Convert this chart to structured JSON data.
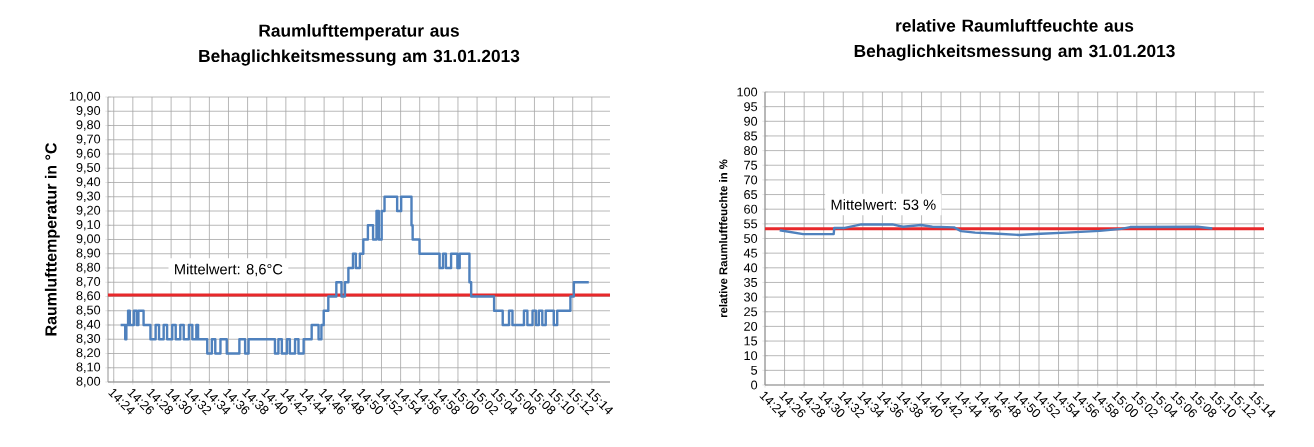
{
  "chart_data": [
    {
      "type": "step",
      "title": "Raumlufttemperatur aus Behaglichkeitsmessung am 31.01.2013",
      "ylabel": "Raumlufttemperatur in °C",
      "grid": true,
      "x": [
        14.412,
        14.42,
        14.422,
        14.425,
        14.428,
        14.435,
        14.44,
        14.443,
        14.452,
        14.464,
        14.473,
        14.479,
        14.487,
        14.493,
        14.502,
        14.508,
        14.516,
        14.522,
        14.531,
        14.537,
        14.544,
        14.547,
        14.563,
        14.571,
        14.577,
        14.586,
        14.597,
        14.619,
        14.629,
        14.635,
        14.681,
        14.687,
        14.693,
        14.702,
        14.707,
        14.716,
        14.722,
        14.731,
        14.745,
        14.757,
        14.762,
        14.766,
        14.774,
        14.788,
        14.797,
        14.803,
        14.809,
        14.817,
        14.822,
        14.829,
        14.835,
        14.843,
        14.852,
        14.858,
        14.862,
        14.867,
        14.872,
        14.894,
        14.901,
        14.919,
        14.921,
        14.933,
        14.968,
        14.974,
        14.979,
        14.988,
        14.999,
        15.003,
        15.02,
        15.023,
        15.063,
        15.078,
        15.089,
        15.095,
        15.115,
        15.121,
        15.13,
        15.136,
        15.141,
        15.147,
        15.153,
        15.167,
        15.173,
        15.196,
        15.202,
        15.211,
        15.228
      ],
      "series": [
        {
          "color": "#4f81bd",
          "values": [
            8.4,
            8.3,
            8.4,
            8.5,
            8.4,
            8.5,
            8.4,
            8.5,
            8.4,
            8.3,
            8.4,
            8.3,
            8.4,
            8.3,
            8.4,
            8.3,
            8.4,
            8.3,
            8.4,
            8.3,
            8.4,
            8.3,
            8.2,
            8.3,
            8.2,
            8.3,
            8.2,
            8.3,
            8.2,
            8.3,
            8.2,
            8.3,
            8.2,
            8.3,
            8.2,
            8.3,
            8.2,
            8.3,
            8.4,
            8.3,
            8.4,
            8.5,
            8.6,
            8.7,
            8.6,
            8.7,
            8.8,
            8.9,
            8.8,
            8.9,
            9.0,
            9.1,
            9.0,
            9.2,
            9.0,
            9.2,
            9.3,
            9.2,
            9.3,
            9.1,
            9.0,
            8.9,
            8.8,
            8.9,
            8.8,
            8.9,
            8.8,
            8.9,
            8.7,
            8.6,
            8.5,
            8.4,
            8.5,
            8.4,
            8.5,
            8.4,
            8.5,
            8.4,
            8.5,
            8.4,
            8.5,
            8.4,
            8.5,
            8.6,
            8.7,
            8.7,
            8.7
          ]
        }
      ],
      "ref_lines": [
        {
          "axis": "y",
          "value": 8.61,
          "label": "Mittelwert: 8,6°C",
          "color": "#e8282b"
        }
      ],
      "xlim": [
        14.39,
        15.265
      ],
      "ylim": [
        8.0,
        10.0
      ],
      "xticks": [
        {
          "value": 14.4,
          "label": "14:24"
        },
        {
          "value": 14.4333,
          "label": "14:26"
        },
        {
          "value": 14.4667,
          "label": "14:28"
        },
        {
          "value": 14.5,
          "label": "14:30"
        },
        {
          "value": 14.5333,
          "label": "14:32"
        },
        {
          "value": 14.5667,
          "label": "14:34"
        },
        {
          "value": 14.6,
          "label": "14:36"
        },
        {
          "value": 14.6333,
          "label": "14:38"
        },
        {
          "value": 14.6667,
          "label": "14:40"
        },
        {
          "value": 14.7,
          "label": "14:42"
        },
        {
          "value": 14.7333,
          "label": "14:44"
        },
        {
          "value": 14.7667,
          "label": "14:46"
        },
        {
          "value": 14.8,
          "label": "14:48"
        },
        {
          "value": 14.8333,
          "label": "14:50"
        },
        {
          "value": 14.8667,
          "label": "14:52"
        },
        {
          "value": 14.9,
          "label": "14:54"
        },
        {
          "value": 14.9333,
          "label": "14:56"
        },
        {
          "value": 14.9667,
          "label": "14:58"
        },
        {
          "value": 15.0,
          "label": "15:00"
        },
        {
          "value": 15.0333,
          "label": "15:02"
        },
        {
          "value": 15.0667,
          "label": "15:04"
        },
        {
          "value": 15.1,
          "label": "15:06"
        },
        {
          "value": 15.1333,
          "label": "15:08"
        },
        {
          "value": 15.1667,
          "label": "15:10"
        },
        {
          "value": 15.2,
          "label": "15:12"
        },
        {
          "value": 15.2333,
          "label": "15:14"
        }
      ],
      "yticks": [
        {
          "value": 8.0,
          "label": "8,00"
        },
        {
          "value": 8.1,
          "label": "8,10"
        },
        {
          "value": 8.2,
          "label": "8,20"
        },
        {
          "value": 8.3,
          "label": "8,30"
        },
        {
          "value": 8.4,
          "label": "8,40"
        },
        {
          "value": 8.5,
          "label": "8,50"
        },
        {
          "value": 8.6,
          "label": "8,60"
        },
        {
          "value": 8.7,
          "label": "8,70"
        },
        {
          "value": 8.8,
          "label": "8,80"
        },
        {
          "value": 8.9,
          "label": "8,90"
        },
        {
          "value": 9.0,
          "label": "9,00"
        },
        {
          "value": 9.1,
          "label": "9,10"
        },
        {
          "value": 9.2,
          "label": "9,20"
        },
        {
          "value": 9.3,
          "label": "9,30"
        },
        {
          "value": 9.4,
          "label": "9,40"
        },
        {
          "value": 9.5,
          "label": "9,50"
        },
        {
          "value": 9.6,
          "label": "9,60"
        },
        {
          "value": 9.7,
          "label": "9,70"
        },
        {
          "value": 9.8,
          "label": "9,80"
        },
        {
          "value": 9.9,
          "label": "9,90"
        },
        {
          "value": 10.0,
          "label": "10,00"
        }
      ]
    },
    {
      "type": "line",
      "title": "relative Raumluftfeuchte aus Behaglichkeitsmessung am 31.01.2013",
      "ylabel": "relative Raumluftfeuchte in %",
      "grid": true,
      "x": [
        14.425,
        14.465,
        14.517,
        14.518,
        14.536,
        14.564,
        14.617,
        14.635,
        14.666,
        14.685,
        14.722,
        14.734,
        14.758,
        14.79,
        14.833,
        14.87,
        14.913,
        14.97,
        15.007,
        15.022,
        15.137,
        15.162
      ],
      "series": [
        {
          "color": "#4f81bd",
          "values": [
            52.8,
            51.5,
            51.5,
            53.6,
            53.6,
            54.8,
            54.8,
            54.0,
            54.6,
            54.0,
            53.8,
            52.5,
            52.0,
            51.7,
            51.2,
            51.6,
            52.0,
            52.6,
            53.3,
            53.9,
            54.0,
            53.4
          ]
        }
      ],
      "ref_lines": [
        {
          "axis": "y",
          "value": 53.3,
          "label": "Mittelwert: 53 %",
          "color": "#e8282b"
        }
      ],
      "xlim": [
        14.4,
        15.25
      ],
      "ylim": [
        0,
        100
      ],
      "xticks": [
        {
          "value": 14.4,
          "label": "14:24"
        },
        {
          "value": 14.4333,
          "label": "14:26"
        },
        {
          "value": 14.4667,
          "label": "14:28"
        },
        {
          "value": 14.5,
          "label": "14:30"
        },
        {
          "value": 14.5333,
          "label": "14:32"
        },
        {
          "value": 14.5667,
          "label": "14:34"
        },
        {
          "value": 14.6,
          "label": "14:36"
        },
        {
          "value": 14.6333,
          "label": "14:38"
        },
        {
          "value": 14.6667,
          "label": "14:40"
        },
        {
          "value": 14.7,
          "label": "14:42"
        },
        {
          "value": 14.7333,
          "label": "14:44"
        },
        {
          "value": 14.7667,
          "label": "14:46"
        },
        {
          "value": 14.8,
          "label": "14:48"
        },
        {
          "value": 14.8333,
          "label": "14:50"
        },
        {
          "value": 14.8667,
          "label": "14:52"
        },
        {
          "value": 14.9,
          "label": "14:54"
        },
        {
          "value": 14.9333,
          "label": "14:56"
        },
        {
          "value": 14.9667,
          "label": "14:58"
        },
        {
          "value": 15.0,
          "label": "15:00"
        },
        {
          "value": 15.0333,
          "label": "15:02"
        },
        {
          "value": 15.0667,
          "label": "15:04"
        },
        {
          "value": 15.1,
          "label": "15:06"
        },
        {
          "value": 15.1333,
          "label": "15:08"
        },
        {
          "value": 15.1667,
          "label": "15:10"
        },
        {
          "value": 15.2,
          "label": "15:12"
        },
        {
          "value": 15.2333,
          "label": "15:14"
        }
      ],
      "yticks": [
        0,
        5,
        10,
        15,
        20,
        25,
        30,
        35,
        40,
        45,
        50,
        55,
        60,
        65,
        70,
        75,
        80,
        85,
        90,
        95,
        100
      ]
    }
  ]
}
